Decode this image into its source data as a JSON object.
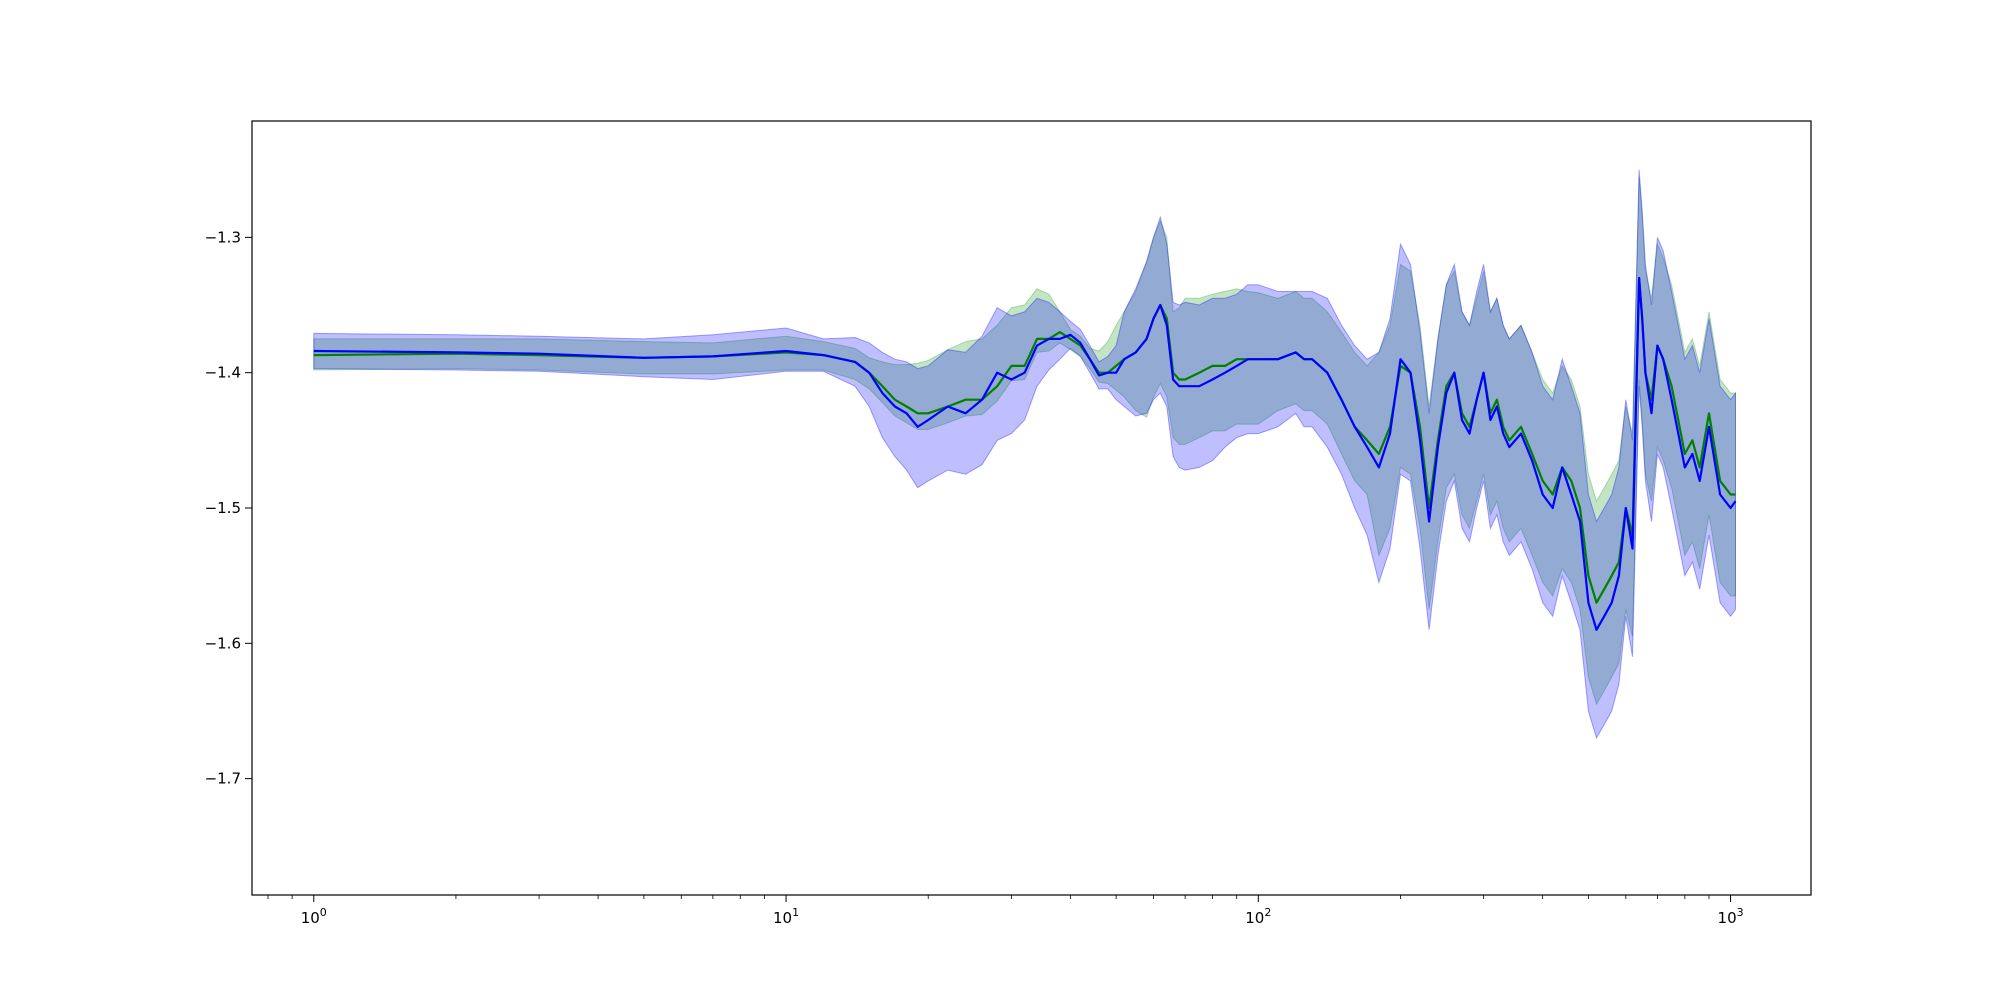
{
  "chart_data": {
    "type": "line",
    "title": "",
    "xlabel": "",
    "ylabel": "",
    "x_scale": "log",
    "xlim": [
      0.74,
      1480
    ],
    "ylim": [
      -1.786,
      -1.214
    ],
    "grid": false,
    "x_ticks": [
      {
        "value": 1,
        "base": "10",
        "exp": "0"
      },
      {
        "value": 10,
        "base": "10",
        "exp": "1"
      },
      {
        "value": 100,
        "base": "10",
        "exp": "2"
      },
      {
        "value": 1000,
        "base": "10",
        "exp": "3"
      }
    ],
    "y_ticks": [
      {
        "value": -1.3,
        "label": "−1.3"
      },
      {
        "value": -1.4,
        "label": "−1.4"
      },
      {
        "value": -1.5,
        "label": "−1.5"
      },
      {
        "value": -1.6,
        "label": "−1.6"
      },
      {
        "value": -1.7,
        "label": "−1.7"
      }
    ],
    "series": [
      {
        "color": "#008000",
        "band_color": "#2ca02c",
        "x": [
          1,
          2,
          3,
          5,
          7,
          10,
          12,
          14,
          15,
          16,
          17,
          18,
          19,
          20,
          22,
          24,
          26,
          28,
          30,
          32,
          34,
          36,
          38,
          40,
          42,
          44,
          46,
          48,
          50,
          52,
          55,
          58,
          60,
          62,
          64,
          66,
          68,
          70,
          75,
          80,
          85,
          90,
          95,
          100,
          110,
          120,
          125,
          130,
          140,
          150,
          160,
          170,
          180,
          190,
          200,
          210,
          220,
          230,
          240,
          250,
          260,
          270,
          280,
          290,
          300,
          310,
          320,
          330,
          340,
          360,
          380,
          400,
          420,
          440,
          460,
          480,
          500,
          520,
          540,
          560,
          580,
          600,
          620,
          640,
          650,
          660,
          680,
          700,
          720,
          750,
          780,
          800,
          830,
          860,
          900,
          950,
          1000,
          1024
        ],
        "y": [
          -1.387,
          -1.386,
          -1.387,
          -1.389,
          -1.388,
          -1.385,
          -1.387,
          -1.392,
          -1.4,
          -1.41,
          -1.42,
          -1.425,
          -1.43,
          -1.43,
          -1.425,
          -1.42,
          -1.42,
          -1.41,
          -1.395,
          -1.395,
          -1.375,
          -1.375,
          -1.37,
          -1.375,
          -1.38,
          -1.39,
          -1.4,
          -1.4,
          -1.395,
          -1.39,
          -1.385,
          -1.375,
          -1.36,
          -1.35,
          -1.36,
          -1.4,
          -1.405,
          -1.405,
          -1.4,
          -1.395,
          -1.395,
          -1.39,
          -1.39,
          -1.39,
          -1.39,
          -1.385,
          -1.39,
          -1.39,
          -1.4,
          -1.42,
          -1.44,
          -1.45,
          -1.46,
          -1.44,
          -1.395,
          -1.4,
          -1.44,
          -1.5,
          -1.45,
          -1.41,
          -1.4,
          -1.43,
          -1.44,
          -1.42,
          -1.4,
          -1.43,
          -1.42,
          -1.44,
          -1.45,
          -1.44,
          -1.46,
          -1.48,
          -1.49,
          -1.47,
          -1.48,
          -1.5,
          -1.55,
          -1.57,
          -1.56,
          -1.55,
          -1.54,
          -1.5,
          -1.52,
          -1.33,
          -1.36,
          -1.4,
          -1.42,
          -1.38,
          -1.39,
          -1.41,
          -1.44,
          -1.46,
          -1.45,
          -1.47,
          -1.43,
          -1.48,
          -1.49,
          -1.49
        ],
        "lower": [
          -1.398,
          -1.397,
          -1.398,
          -1.401,
          -1.401,
          -1.398,
          -1.398,
          -1.405,
          -1.412,
          -1.422,
          -1.432,
          -1.437,
          -1.442,
          -1.442,
          -1.437,
          -1.432,
          -1.431,
          -1.421,
          -1.406,
          -1.405,
          -1.385,
          -1.384,
          -1.378,
          -1.383,
          -1.388,
          -1.397,
          -1.407,
          -1.408,
          -1.413,
          -1.418,
          -1.428,
          -1.433,
          -1.418,
          -1.408,
          -1.418,
          -1.448,
          -1.453,
          -1.453,
          -1.448,
          -1.443,
          -1.443,
          -1.438,
          -1.438,
          -1.438,
          -1.428,
          -1.423,
          -1.428,
          -1.428,
          -1.438,
          -1.46,
          -1.48,
          -1.49,
          -1.535,
          -1.515,
          -1.47,
          -1.475,
          -1.515,
          -1.575,
          -1.525,
          -1.485,
          -1.475,
          -1.505,
          -1.515,
          -1.495,
          -1.475,
          -1.505,
          -1.495,
          -1.515,
          -1.525,
          -1.515,
          -1.535,
          -1.555,
          -1.565,
          -1.545,
          -1.555,
          -1.575,
          -1.625,
          -1.645,
          -1.635,
          -1.625,
          -1.615,
          -1.575,
          -1.595,
          -1.405,
          -1.435,
          -1.475,
          -1.495,
          -1.455,
          -1.465,
          -1.485,
          -1.515,
          -1.535,
          -1.525,
          -1.545,
          -1.505,
          -1.555,
          -1.565,
          -1.565
        ],
        "upper": [
          -1.375,
          -1.375,
          -1.375,
          -1.377,
          -1.378,
          -1.373,
          -1.377,
          -1.382,
          -1.389,
          -1.392,
          -1.394,
          -1.394,
          -1.393,
          -1.391,
          -1.383,
          -1.377,
          -1.375,
          -1.365,
          -1.352,
          -1.35,
          -1.338,
          -1.342,
          -1.355,
          -1.368,
          -1.373,
          -1.382,
          -1.384,
          -1.377,
          -1.365,
          -1.355,
          -1.34,
          -1.318,
          -1.3,
          -1.288,
          -1.3,
          -1.355,
          -1.352,
          -1.345,
          -1.345,
          -1.342,
          -1.34,
          -1.338,
          -1.34,
          -1.341,
          -1.345,
          -1.34,
          -1.345,
          -1.345,
          -1.355,
          -1.37,
          -1.385,
          -1.395,
          -1.385,
          -1.365,
          -1.32,
          -1.325,
          -1.365,
          -1.425,
          -1.375,
          -1.335,
          -1.325,
          -1.355,
          -1.365,
          -1.345,
          -1.325,
          -1.355,
          -1.345,
          -1.365,
          -1.375,
          -1.365,
          -1.385,
          -1.405,
          -1.415,
          -1.395,
          -1.405,
          -1.425,
          -1.475,
          -1.495,
          -1.485,
          -1.475,
          -1.465,
          -1.425,
          -1.445,
          -1.255,
          -1.285,
          -1.325,
          -1.345,
          -1.305,
          -1.315,
          -1.335,
          -1.365,
          -1.385,
          -1.375,
          -1.395,
          -1.355,
          -1.405,
          -1.415,
          -1.415
        ]
      },
      {
        "color": "#0000ff",
        "band_color": "#0000ff",
        "x": [
          1,
          2,
          3,
          5,
          7,
          10,
          12,
          14,
          15,
          16,
          17,
          18,
          19,
          20,
          22,
          24,
          26,
          28,
          30,
          32,
          34,
          36,
          38,
          40,
          42,
          44,
          46,
          48,
          50,
          52,
          55,
          58,
          60,
          62,
          64,
          66,
          68,
          70,
          75,
          80,
          85,
          90,
          95,
          100,
          110,
          120,
          125,
          130,
          140,
          150,
          160,
          170,
          180,
          190,
          200,
          210,
          220,
          230,
          240,
          250,
          260,
          270,
          280,
          290,
          300,
          310,
          320,
          330,
          340,
          360,
          380,
          400,
          420,
          440,
          460,
          480,
          500,
          520,
          540,
          560,
          580,
          600,
          620,
          640,
          650,
          660,
          680,
          700,
          720,
          750,
          780,
          800,
          830,
          860,
          900,
          950,
          1000,
          1024
        ],
        "y": [
          -1.384,
          -1.385,
          -1.386,
          -1.389,
          -1.388,
          -1.384,
          -1.387,
          -1.392,
          -1.4,
          -1.415,
          -1.425,
          -1.43,
          -1.44,
          -1.435,
          -1.425,
          -1.43,
          -1.42,
          -1.4,
          -1.405,
          -1.4,
          -1.38,
          -1.375,
          -1.375,
          -1.372,
          -1.378,
          -1.39,
          -1.402,
          -1.4,
          -1.4,
          -1.39,
          -1.385,
          -1.375,
          -1.36,
          -1.35,
          -1.365,
          -1.405,
          -1.41,
          -1.41,
          -1.41,
          -1.405,
          -1.4,
          -1.395,
          -1.39,
          -1.39,
          -1.39,
          -1.385,
          -1.39,
          -1.39,
          -1.4,
          -1.42,
          -1.44,
          -1.455,
          -1.47,
          -1.445,
          -1.39,
          -1.4,
          -1.45,
          -1.51,
          -1.455,
          -1.415,
          -1.4,
          -1.435,
          -1.445,
          -1.42,
          -1.4,
          -1.435,
          -1.425,
          -1.445,
          -1.455,
          -1.445,
          -1.465,
          -1.49,
          -1.5,
          -1.47,
          -1.49,
          -1.51,
          -1.57,
          -1.59,
          -1.58,
          -1.57,
          -1.55,
          -1.5,
          -1.53,
          -1.33,
          -1.36,
          -1.4,
          -1.43,
          -1.38,
          -1.39,
          -1.42,
          -1.45,
          -1.47,
          -1.46,
          -1.48,
          -1.44,
          -1.49,
          -1.5,
          -1.495
        ],
        "lower": [
          -1.397,
          -1.398,
          -1.399,
          -1.403,
          -1.405,
          -1.399,
          -1.399,
          -1.41,
          -1.425,
          -1.448,
          -1.462,
          -1.472,
          -1.485,
          -1.48,
          -1.472,
          -1.475,
          -1.468,
          -1.45,
          -1.445,
          -1.435,
          -1.41,
          -1.398,
          -1.39,
          -1.382,
          -1.388,
          -1.4,
          -1.412,
          -1.412,
          -1.42,
          -1.425,
          -1.432,
          -1.43,
          -1.42,
          -1.415,
          -1.425,
          -1.462,
          -1.47,
          -1.472,
          -1.47,
          -1.465,
          -1.455,
          -1.448,
          -1.445,
          -1.445,
          -1.44,
          -1.43,
          -1.44,
          -1.44,
          -1.455,
          -1.475,
          -1.5,
          -1.52,
          -1.555,
          -1.53,
          -1.475,
          -1.48,
          -1.53,
          -1.59,
          -1.535,
          -1.495,
          -1.48,
          -1.515,
          -1.525,
          -1.5,
          -1.48,
          -1.515,
          -1.505,
          -1.525,
          -1.535,
          -1.525,
          -1.545,
          -1.57,
          -1.58,
          -1.55,
          -1.57,
          -1.59,
          -1.65,
          -1.67,
          -1.66,
          -1.65,
          -1.63,
          -1.58,
          -1.61,
          -1.41,
          -1.44,
          -1.48,
          -1.51,
          -1.46,
          -1.47,
          -1.5,
          -1.53,
          -1.55,
          -1.54,
          -1.56,
          -1.52,
          -1.57,
          -1.58,
          -1.575
        ],
        "upper": [
          -1.371,
          -1.372,
          -1.373,
          -1.375,
          -1.372,
          -1.367,
          -1.375,
          -1.374,
          -1.378,
          -1.385,
          -1.39,
          -1.392,
          -1.397,
          -1.395,
          -1.383,
          -1.385,
          -1.373,
          -1.352,
          -1.358,
          -1.355,
          -1.345,
          -1.348,
          -1.355,
          -1.362,
          -1.368,
          -1.38,
          -1.392,
          -1.388,
          -1.38,
          -1.355,
          -1.338,
          -1.318,
          -1.3,
          -1.285,
          -1.305,
          -1.348,
          -1.35,
          -1.348,
          -1.35,
          -1.345,
          -1.345,
          -1.342,
          -1.335,
          -1.335,
          -1.34,
          -1.34,
          -1.34,
          -1.34,
          -1.345,
          -1.365,
          -1.38,
          -1.39,
          -1.385,
          -1.36,
          -1.305,
          -1.32,
          -1.37,
          -1.43,
          -1.375,
          -1.335,
          -1.32,
          -1.355,
          -1.365,
          -1.34,
          -1.32,
          -1.355,
          -1.345,
          -1.365,
          -1.375,
          -1.365,
          -1.385,
          -1.41,
          -1.42,
          -1.39,
          -1.41,
          -1.43,
          -1.49,
          -1.51,
          -1.5,
          -1.49,
          -1.47,
          -1.42,
          -1.45,
          -1.25,
          -1.28,
          -1.32,
          -1.35,
          -1.3,
          -1.31,
          -1.34,
          -1.37,
          -1.39,
          -1.38,
          -1.4,
          -1.36,
          -1.41,
          -1.42,
          -1.415
        ]
      }
    ]
  }
}
